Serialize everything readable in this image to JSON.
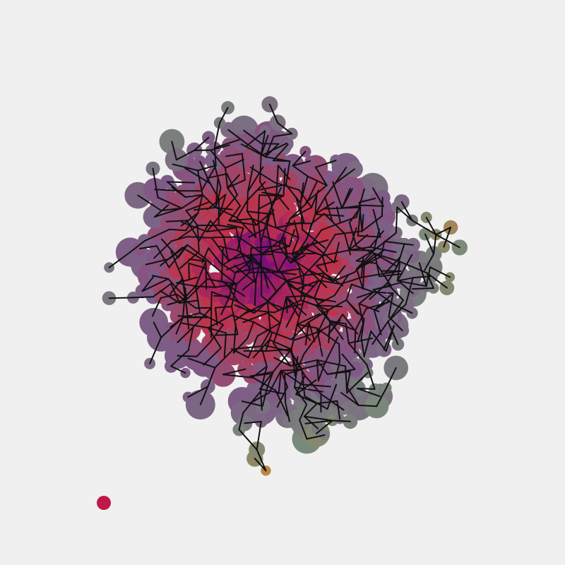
{
  "artwork": {
    "background": "#f0f0f0",
    "line_color": "#111111",
    "palette": {
      "center": "#7a0a80",
      "inner": "#c0334a",
      "mid": "#7e5a88",
      "outer_gray": "#7a8a7a",
      "orange": "#c8843a",
      "yellow_green": "#b8d04a",
      "green": "#6cdc78",
      "root_red": "#c01848"
    }
  }
}
